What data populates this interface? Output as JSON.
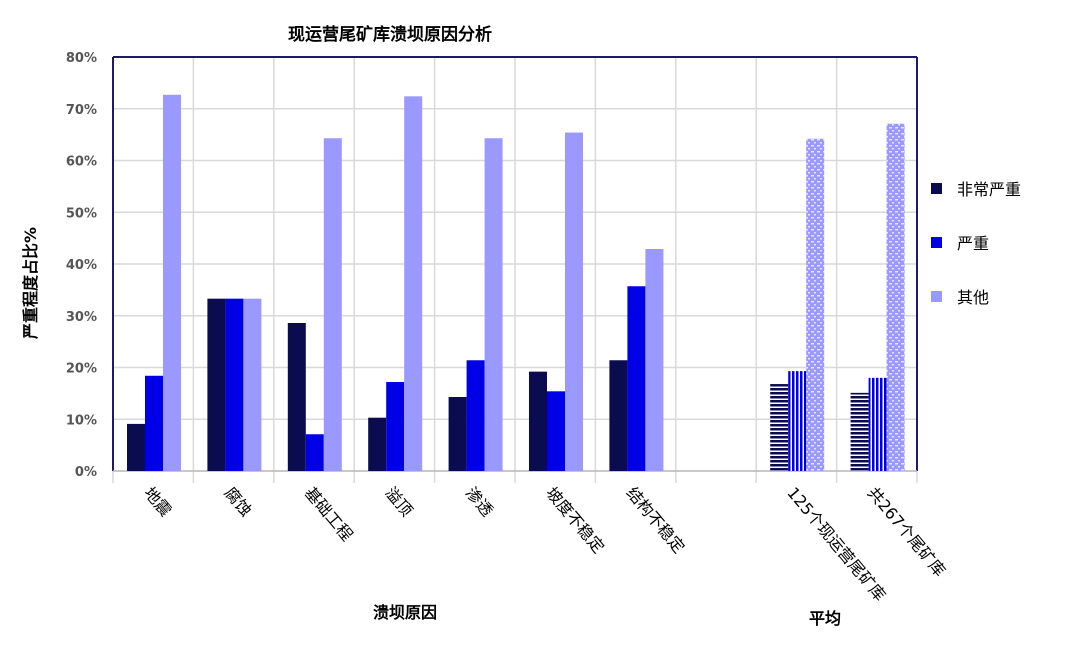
{
  "chart_data": {
    "type": "bar",
    "title": "现运营尾矿库溃坝原因分析",
    "xlabel": "溃坝原因",
    "xlabel2": "平均",
    "ylabel": "严重程度占比%",
    "ylim": [
      0,
      80
    ],
    "yticks": [
      "0%",
      "10%",
      "20%",
      "30%",
      "40%",
      "50%",
      "60%",
      "70%",
      "80%"
    ],
    "grid": true,
    "legend_position": "right",
    "categories": [
      "地震",
      "腐蚀",
      "基础工程",
      "溢顶",
      "渗透",
      "坡度不稳定",
      "结构不稳定",
      "",
      "125个现运营尾矿库",
      "共267个尾矿库"
    ],
    "series": [
      {
        "name": "非常严重",
        "color": "#0b0b4f",
        "values": [
          9.1,
          33.3,
          28.6,
          10.3,
          14.3,
          19.2,
          21.4,
          null,
          16.8,
          15.1
        ]
      },
      {
        "name": "严重",
        "color": "#0000e6",
        "values": [
          18.4,
          33.3,
          7.1,
          17.2,
          21.4,
          15.4,
          35.7,
          null,
          19.3,
          18.0
        ]
      },
      {
        "name": "其他",
        "color": "#9999ff",
        "values": [
          72.7,
          33.3,
          64.3,
          72.4,
          64.3,
          65.4,
          42.9,
          null,
          64.2,
          67.1
        ]
      }
    ],
    "patterned_categories": [
      "125个现运营尾矿库",
      "共267个尾矿库"
    ]
  }
}
